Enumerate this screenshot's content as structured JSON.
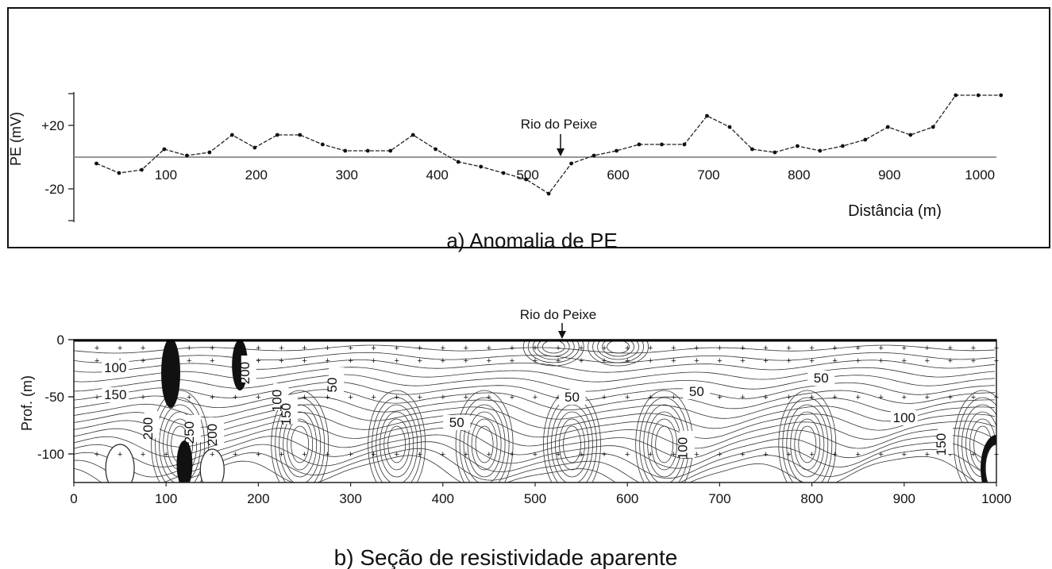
{
  "chart_data": [
    {
      "type": "line",
      "title": "a) Anomalia de PE",
      "xlabel": "Distância (m)",
      "ylabel": "PE (mV)",
      "x_ticks": [
        100,
        200,
        300,
        400,
        500,
        600,
        700,
        800,
        900,
        1000
      ],
      "y_ticks": [
        {
          "value": 20,
          "label": "+20"
        },
        {
          "value": -20,
          "label": "-20"
        }
      ],
      "xlim": [
        0,
        1020
      ],
      "ylim": [
        -40,
        40
      ],
      "annotation": {
        "label": "Rio do Peixe",
        "x": 530
      },
      "series": [
        {
          "x": [
            25,
            50,
            75,
            100,
            125,
            150,
            175,
            200,
            225,
            250,
            275,
            300,
            325,
            350,
            375,
            400,
            425,
            450,
            475,
            500,
            525,
            550,
            575,
            600,
            625,
            650,
            675,
            700,
            725,
            750,
            775,
            800,
            825,
            850,
            875,
            900,
            925,
            950,
            975,
            1000,
            1025
          ],
          "y": [
            -4,
            -10,
            -8,
            5,
            1,
            3,
            14,
            6,
            14,
            14,
            8,
            4,
            4,
            4,
            14,
            5,
            -3,
            -6,
            -10,
            -14,
            -23,
            -4,
            1,
            4,
            8,
            8,
            8,
            26,
            19,
            5,
            3,
            7,
            4,
            7,
            11,
            19,
            14,
            19,
            39,
            39,
            39
          ]
        }
      ],
      "grid": false,
      "reference_line": 0
    },
    {
      "type": "heatmap",
      "title": "b) Seção de resistividade aparente",
      "xlabel": "",
      "ylabel": "Prof. (m)",
      "x_ticks": [
        0,
        100,
        200,
        300,
        400,
        500,
        600,
        700,
        800,
        900,
        1000
      ],
      "y_ticks": [
        0,
        -50,
        -100
      ],
      "xlim": [
        0,
        1000
      ],
      "ylim": [
        -125,
        0
      ],
      "annotation": {
        "label": "Rio do Peixe",
        "x": 530
      },
      "contour_labels": [
        "100",
        "150",
        "200",
        "250",
        "200",
        "200",
        "100",
        "150",
        "50",
        "50",
        "50",
        "50",
        "50",
        "100",
        "100",
        "150"
      ],
      "measurement_depths": [
        -7,
        -18,
        -50,
        -100
      ]
    }
  ]
}
